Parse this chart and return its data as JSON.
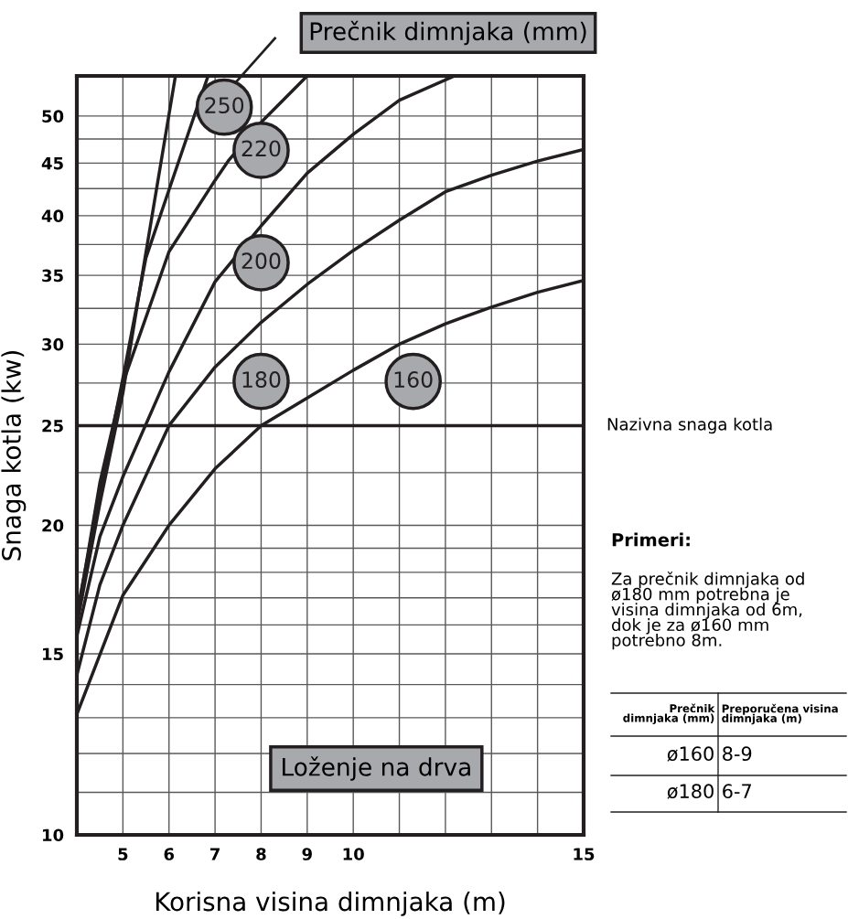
{
  "chart_data": {
    "type": "line",
    "title": "Prečnik dimnjaka (mm)",
    "xlabel": "Korisna visina dimnjaka (m)",
    "ylabel": "Snaga kotla (kw)",
    "log": "y",
    "xlim": [
      4,
      15
    ],
    "ylim": [
      10,
      54.7
    ],
    "xticks": [
      {
        "value": 4,
        "label": null
      },
      5,
      6,
      7,
      8,
      9,
      10,
      {
        "value": 11,
        "label": null
      },
      {
        "value": 12,
        "label": null
      },
      {
        "value": 13,
        "label": null
      },
      {
        "value": 14,
        "label": null
      },
      15
    ],
    "yticks": [
      10,
      {
        "value": 11,
        "label": null
      },
      {
        "value": 12,
        "label": null
      },
      {
        "value": 13,
        "label": null
      },
      {
        "value": 14,
        "label": null
      },
      15,
      {
        "value": 16,
        "label": null
      },
      {
        "value": 17,
        "label": null
      },
      {
        "value": 18,
        "label": null
      },
      {
        "value": 19,
        "label": null
      },
      20,
      {
        "value": 22.5,
        "label": null
      },
      25,
      {
        "value": 27.5,
        "label": null
      },
      30,
      {
        "value": 32.5,
        "label": null
      },
      35,
      {
        "value": 37.5,
        "label": null
      },
      40,
      {
        "value": 42.5,
        "label": null
      },
      45,
      {
        "value": 47.5,
        "label": null
      },
      50
    ],
    "grid": true,
    "marker": "none",
    "line_style": "solid",
    "series": [
      {
        "color": "#231f20",
        "x": [
          4,
          4.5,
          5,
          5.44,
          6.14
        ],
        "values": [
          16.0,
          21.0,
          26.9,
          35.5,
          54.7
        ]
      },
      {
        "name": "250",
        "color": "#231f20",
        "x": [
          4,
          4.5,
          5,
          5.5,
          6.04,
          6.58,
          6.85
        ],
        "values": [
          16.4,
          21.5,
          27.8,
          36.4,
          42.9,
          50.5,
          54.7
        ]
      },
      {
        "name": "220",
        "color": "#231f20",
        "x": [
          4,
          4.5,
          5,
          6,
          7,
          7.3,
          8,
          9.0
        ],
        "values": [
          16.2,
          22.0,
          27.5,
          36.9,
          43.3,
          45.3,
          49.3,
          54.7
        ]
      },
      {
        "name": "200",
        "color": "#231f20",
        "x": [
          4,
          4.5,
          5,
          6,
          7,
          8,
          9,
          10,
          11,
          12.2
        ],
        "values": [
          15.6,
          19.5,
          22.3,
          28.2,
          34.5,
          39.1,
          44.0,
          48.0,
          51.8,
          54.7
        ]
      },
      {
        "name": "180",
        "color": "#231f20",
        "x": [
          4,
          4.5,
          5,
          6,
          7,
          8,
          9,
          10,
          11,
          12,
          13,
          14,
          15
        ],
        "values": [
          14.3,
          17.5,
          20.0,
          25.0,
          28.5,
          31.5,
          34.3,
          37.0,
          39.6,
          42.2,
          43.8,
          45.2,
          46.4
        ]
      },
      {
        "name": "160",
        "color": "#231f20",
        "x": [
          4,
          5,
          6,
          7,
          8,
          9,
          10,
          11,
          12,
          13,
          14,
          15
        ],
        "values": [
          13.1,
          17.1,
          20.0,
          22.7,
          25.0,
          26.6,
          28.3,
          30.0,
          31.4,
          32.6,
          33.7,
          34.6
        ]
      }
    ],
    "ref_lines": [
      {
        "axis": "y",
        "value": 25,
        "label": "Nazivna snaga kotla",
        "color": "#231f20"
      }
    ],
    "annotations": [
      "Loženje na drva",
      "Primeri:",
      "Za prečnik dimnjaka od\nø180 mm potrebna je\nvisina dimnjaka od 6m,\ndok je za ø160 mm\npotrebno 8m.",
      "Prečnik\ndimnjaka (mm)",
      "Preporučena visina\ndimnjaka (m)",
      "ø160",
      "8-9",
      "ø180",
      "6-7"
    ]
  }
}
